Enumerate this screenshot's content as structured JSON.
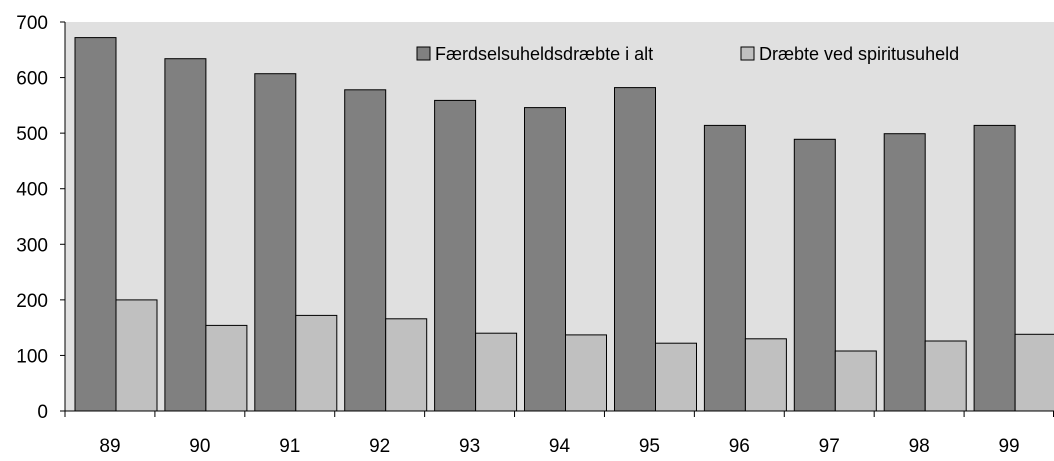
{
  "chart_data": {
    "type": "bar",
    "title": "",
    "xlabel": "",
    "ylabel": "",
    "categories": [
      "89",
      "90",
      "91",
      "92",
      "93",
      "94",
      "95",
      "96",
      "97",
      "98",
      "99"
    ],
    "series": [
      {
        "name": "Færdselsuheldsdræbte i alt",
        "color": "#808080",
        "values": [
          672,
          634,
          607,
          578,
          559,
          546,
          582,
          514,
          489,
          499,
          514
        ]
      },
      {
        "name": "Dræbte ved spiritusuheld",
        "color": "#c0c0c0",
        "values": [
          200,
          154,
          172,
          166,
          140,
          137,
          122,
          130,
          108,
          126,
          138
        ]
      }
    ],
    "ylim": [
      0,
      700
    ],
    "yticks": [
      "0",
      "100",
      "200",
      "300",
      "400",
      "500",
      "600",
      "700"
    ],
    "grid": false,
    "plot_background": "#e0e0e0",
    "legend_position": "top-right"
  }
}
